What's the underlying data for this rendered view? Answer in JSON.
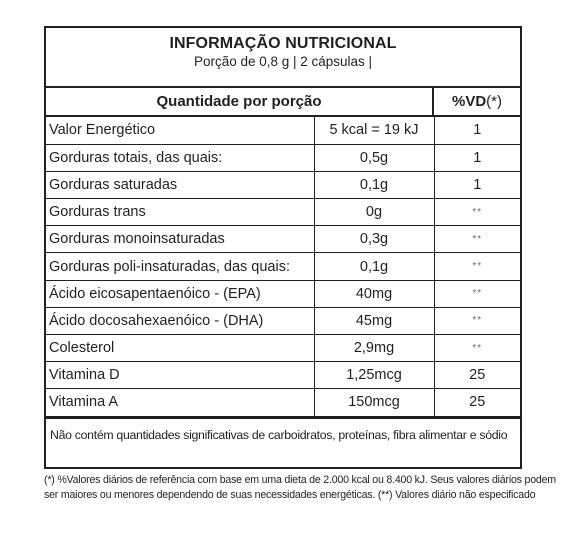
{
  "header": {
    "title": "INFORMAÇÃO NUTRICIONAL",
    "portion": "Porção de 0,8 g | 2 cápsulas |"
  },
  "columns": {
    "quantity": "Quantidade por porção",
    "vd": "%VD",
    "vd_suffix": "(*)"
  },
  "rows": [
    {
      "name": "Valor Energético",
      "amount": "5 kcal = 19 kJ",
      "vd": "1"
    },
    {
      "name": "Gorduras totais, das quais:",
      "amount": "0,5g",
      "vd": "1"
    },
    {
      "name": "Gorduras saturadas",
      "amount": "0,1g",
      "vd": "1"
    },
    {
      "name": "Gorduras trans",
      "amount": "0g",
      "vd": "**"
    },
    {
      "name": "Gorduras monoinsaturadas",
      "amount": "0,3g",
      "vd": "**"
    },
    {
      "name": "Gorduras poli-insaturadas, das quais:",
      "amount": "0,1g",
      "vd": "**"
    },
    {
      "name": "Ácido eicosapentaenóico - (EPA)",
      "amount": "40mg",
      "vd": "**"
    },
    {
      "name": "Ácido docosahexaenóico - (DHA)",
      "amount": "45mg",
      "vd": "**"
    },
    {
      "name": "Colesterol",
      "amount": "2,9mg",
      "vd": "**"
    },
    {
      "name": "Vitamina D",
      "amount": "1,25mcg",
      "vd": "25"
    },
    {
      "name": "Vitamina A",
      "amount": "150mcg",
      "vd": "25"
    }
  ],
  "note": "Não contém quantidades significativas de carboidratos, proteínas, fibra alimentar e sódio",
  "footer": {
    "line1": "(*) %Valores diários de referência com base em uma dieta de 2.000 kcal ou 8.400 kJ. Seus valores diários podem",
    "line2": "ser maiores ou menores dependendo de suas necessidades energéticas. (**) Valores diário não especificado"
  }
}
